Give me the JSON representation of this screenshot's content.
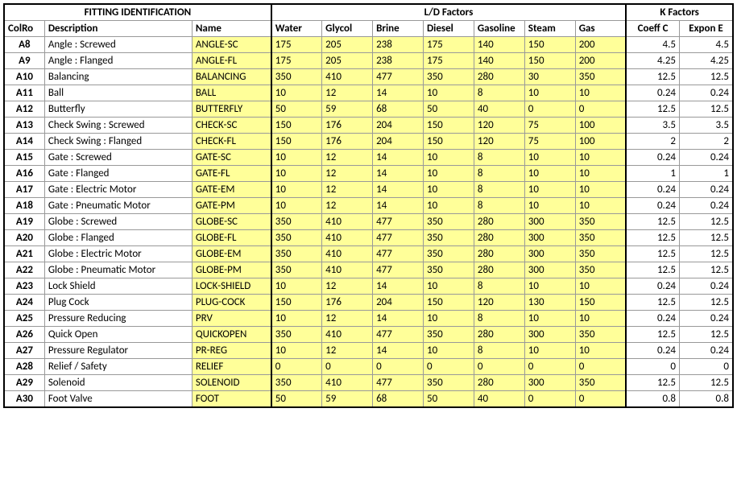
{
  "headers": {
    "group_identification": "FITTING  IDENTIFICATION",
    "group_ld": "L/D Factors",
    "group_k": "K Factors",
    "colro": "ColRo",
    "description": "Description",
    "name": "Name",
    "fluids": [
      "Water",
      "Glycol",
      "Brine",
      "Diesel",
      "Gasoline",
      "Steam",
      "Gas"
    ],
    "k_cols": [
      "Coeff C",
      "Expon E"
    ]
  },
  "rows": [
    {
      "colro": "A8",
      "desc": "Angle : Screwed",
      "name": "ANGLE-SC",
      "ld": [
        175,
        205,
        238,
        175,
        140,
        150,
        200
      ],
      "k": [
        4.5,
        4.5
      ]
    },
    {
      "colro": "A9",
      "desc": "Angle : Flanged",
      "name": "ANGLE-FL",
      "ld": [
        175,
        205,
        238,
        175,
        140,
        150,
        200
      ],
      "k": [
        4.25,
        4.25
      ]
    },
    {
      "colro": "A10",
      "desc": "Balancing",
      "name": "BALANCING",
      "ld": [
        350,
        410,
        477,
        350,
        280,
        30,
        350
      ],
      "k": [
        12.5,
        12.5
      ]
    },
    {
      "colro": "A11",
      "desc": "Ball",
      "name": "BALL",
      "ld": [
        10,
        12,
        14,
        10,
        8,
        10,
        10
      ],
      "k": [
        0.24,
        0.24
      ]
    },
    {
      "colro": "A12",
      "desc": "Butterfly",
      "name": "BUTTERFLY",
      "ld": [
        50,
        59,
        68,
        50,
        40,
        0,
        0
      ],
      "k": [
        12.5,
        12.5
      ]
    },
    {
      "colro": "A13",
      "desc": "Check Swing : Screwed",
      "name": "CHECK-SC",
      "ld": [
        150,
        176,
        204,
        150,
        120,
        75,
        100
      ],
      "k": [
        3.5,
        3.5
      ]
    },
    {
      "colro": "A14",
      "desc": "Check Swing : Flanged",
      "name": "CHECK-FL",
      "ld": [
        150,
        176,
        204,
        150,
        120,
        75,
        100
      ],
      "k": [
        2,
        2
      ]
    },
    {
      "colro": "A15",
      "desc": "Gate : Screwed",
      "name": "GATE-SC",
      "ld": [
        10,
        12,
        14,
        10,
        8,
        10,
        10
      ],
      "k": [
        0.24,
        0.24
      ]
    },
    {
      "colro": "A16",
      "desc": "Gate : Flanged",
      "name": "GATE-FL",
      "ld": [
        10,
        12,
        14,
        10,
        8,
        10,
        10
      ],
      "k": [
        1,
        1
      ]
    },
    {
      "colro": "A17",
      "desc": "Gate : Electric Motor",
      "name": "GATE-EM",
      "ld": [
        10,
        12,
        14,
        10,
        8,
        10,
        10
      ],
      "k": [
        0.24,
        0.24
      ]
    },
    {
      "colro": "A18",
      "desc": "Gate : Pneumatic Motor",
      "name": "GATE-PM",
      "ld": [
        10,
        12,
        14,
        10,
        8,
        10,
        10
      ],
      "k": [
        0.24,
        0.24
      ]
    },
    {
      "colro": "A19",
      "desc": "Globe : Screwed",
      "name": "GLOBE-SC",
      "ld": [
        350,
        410,
        477,
        350,
        280,
        300,
        350
      ],
      "k": [
        12.5,
        12.5
      ]
    },
    {
      "colro": "A20",
      "desc": "Globe : Flanged",
      "name": "GLOBE-FL",
      "ld": [
        350,
        410,
        477,
        350,
        280,
        300,
        350
      ],
      "k": [
        12.5,
        12.5
      ]
    },
    {
      "colro": "A21",
      "desc": "Globe : Electric Motor",
      "name": "GLOBE-EM",
      "ld": [
        350,
        410,
        477,
        350,
        280,
        300,
        350
      ],
      "k": [
        12.5,
        12.5
      ]
    },
    {
      "colro": "A22",
      "desc": "Globe : Pneumatic Motor",
      "name": "GLOBE-PM",
      "ld": [
        350,
        410,
        477,
        350,
        280,
        300,
        350
      ],
      "k": [
        12.5,
        12.5
      ]
    },
    {
      "colro": "A23",
      "desc": "Lock Shield",
      "name": "LOCK-SHIELD",
      "ld": [
        10,
        12,
        14,
        10,
        8,
        10,
        10
      ],
      "k": [
        0.24,
        0.24
      ]
    },
    {
      "colro": "A24",
      "desc": "Plug Cock",
      "name": "PLUG-COCK",
      "ld": [
        150,
        176,
        204,
        150,
        120,
        130,
        150
      ],
      "k": [
        12.5,
        12.5
      ]
    },
    {
      "colro": "A25",
      "desc": "Pressure Reducing",
      "name": "PRV",
      "ld": [
        10,
        12,
        14,
        10,
        8,
        10,
        10
      ],
      "k": [
        0.24,
        0.24
      ]
    },
    {
      "colro": "A26",
      "desc": "Quick Open",
      "name": "QUICKOPEN",
      "ld": [
        350,
        410,
        477,
        350,
        280,
        300,
        350
      ],
      "k": [
        12.5,
        12.5
      ]
    },
    {
      "colro": "A27",
      "desc": "Pressure Regulator",
      "name": "PR-REG",
      "ld": [
        10,
        12,
        14,
        10,
        8,
        10,
        10
      ],
      "k": [
        0.24,
        0.24
      ]
    },
    {
      "colro": "A28",
      "desc": "Relief / Safety",
      "name": "RELIEF",
      "ld": [
        0,
        0,
        0,
        0,
        0,
        0,
        0
      ],
      "k": [
        0,
        0
      ]
    },
    {
      "colro": "A29",
      "desc": "Solenoid",
      "name": "SOLENOID",
      "ld": [
        350,
        410,
        477,
        350,
        280,
        300,
        350
      ],
      "k": [
        12.5,
        12.5
      ]
    },
    {
      "colro": "A30",
      "desc": "Foot Valve",
      "name": "FOOT",
      "ld": [
        50,
        59,
        68,
        50,
        40,
        0,
        0
      ],
      "k": [
        0.8,
        0.8
      ]
    }
  ],
  "style": {
    "highlight_bg": "#ffff99",
    "border_color": "#999999",
    "outer_border": "#000000",
    "font_family": "Calibri",
    "font_size_pt": 10
  }
}
